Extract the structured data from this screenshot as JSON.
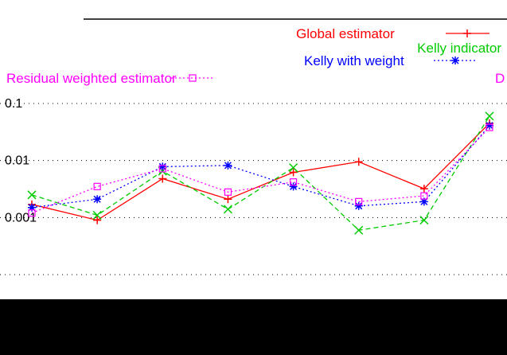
{
  "chart_data": {
    "type": "line",
    "title": "",
    "xlabel": "",
    "ylabel": "",
    "scale": "log",
    "ylim": [
      0.0001,
      0.1
    ],
    "tick_labels": [
      "0.001",
      "0.01",
      "0.1"
    ],
    "legend": {
      "entries": [
        {
          "label": "Global estimator",
          "color": "#ff0000",
          "marker": "+",
          "linestyle": "solid"
        },
        {
          "label": "Kelly indicator",
          "color": "#00cc00",
          "marker": "x",
          "linestyle": "dashed"
        },
        {
          "label": "Kelly with weight",
          "color": "#0000ff",
          "marker": "*",
          "linestyle": "dotted"
        },
        {
          "label": "Residual weighted estimator",
          "color": "#ff00ff",
          "marker": "square",
          "linestyle": "dotted"
        },
        {
          "label": "D",
          "color": "#ff00ff",
          "marker": "",
          "linestyle": ""
        }
      ]
    },
    "series": [
      {
        "name": "Global estimator",
        "color": "#ff0000",
        "marker": "+",
        "dash": "",
        "x": [
          0,
          1,
          2,
          3,
          4,
          5,
          6,
          7
        ],
        "values": [
          0.0017,
          0.0009,
          0.0048,
          0.0021,
          0.0062,
          0.0095,
          0.0032,
          0.045
        ]
      },
      {
        "name": "Kelly indicator",
        "color": "#00cc00",
        "marker": "x",
        "dash": "6,4",
        "x": [
          0,
          1,
          2,
          3,
          4,
          5,
          6,
          7
        ],
        "values": [
          0.0025,
          0.0011,
          0.0065,
          0.0014,
          0.0075,
          0.0006,
          0.0009,
          0.06
        ]
      },
      {
        "name": "Kelly with weight",
        "color": "#0000ff",
        "marker": "*",
        "dash": "2,3",
        "x": [
          0,
          1,
          2,
          3,
          4,
          5,
          6,
          7
        ],
        "values": [
          0.0015,
          0.0021,
          0.0078,
          0.0082,
          0.0035,
          0.0016,
          0.0019,
          0.041
        ]
      },
      {
        "name": "Residual weighted estimator",
        "color": "#ff00ff",
        "marker": "square",
        "dash": "2,3",
        "x": [
          0,
          1,
          2,
          3,
          4,
          5,
          6,
          7
        ],
        "values": [
          0.0012,
          0.0035,
          0.0072,
          0.0028,
          0.0042,
          0.0019,
          0.0024,
          0.038
        ]
      }
    ]
  }
}
